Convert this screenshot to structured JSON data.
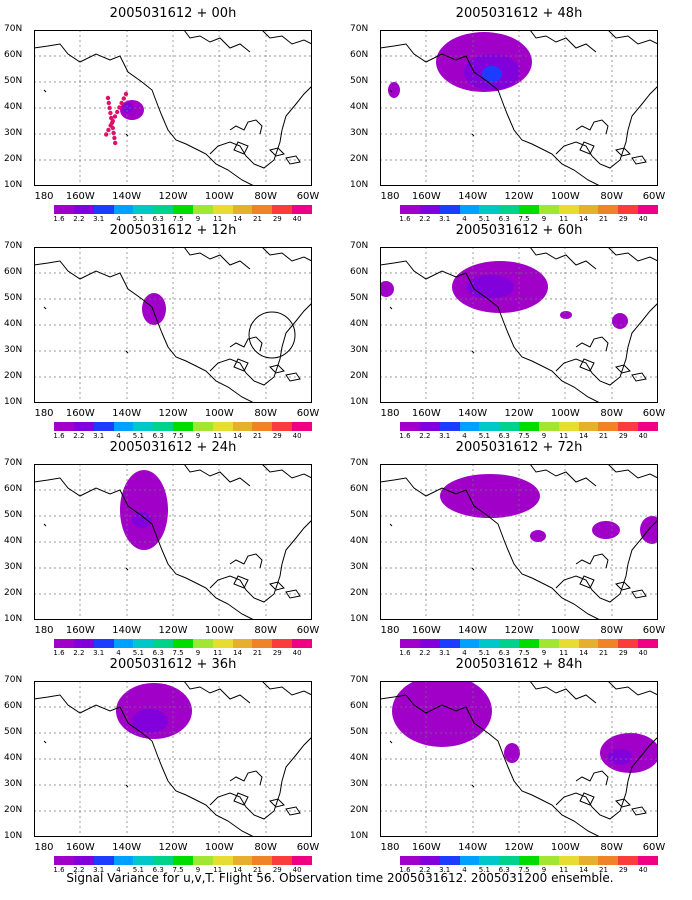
{
  "panels": [
    {
      "title": "2005031612 + 00h"
    },
    {
      "title": "2005031612 + 48h"
    },
    {
      "title": "2005031612 + 12h"
    },
    {
      "title": "2005031612 + 60h"
    },
    {
      "title": "2005031612 + 24h"
    },
    {
      "title": "2005031612 + 72h"
    },
    {
      "title": "2005031612 + 36h"
    },
    {
      "title": "2005031612 + 84h"
    }
  ],
  "axis": {
    "lat_labels": [
      "70N",
      "60N",
      "50N",
      "40N",
      "30N",
      "20N",
      "10N"
    ],
    "lon_labels": [
      "180",
      "160W",
      "140W",
      "120W",
      "100W",
      "80W",
      "60W"
    ]
  },
  "colorbar": {
    "colors": [
      "#a000c8",
      "#8200dc",
      "#1e3cff",
      "#00a0ff",
      "#00c8c8",
      "#00d28c",
      "#00dc00",
      "#a0e632",
      "#e6dc32",
      "#e6af2d",
      "#f08228",
      "#fa3c3c",
      "#f00082"
    ],
    "labels": [
      "1.6",
      "2.2",
      "3.1",
      "4",
      "5.1",
      "6.3",
      "7.5",
      "9",
      "11",
      "14",
      "21",
      "29",
      "40"
    ]
  },
  "footer": "Signal Variance for u,v,T. Flight 56. Observation time 2005031612. 2005031200 ensemble."
}
